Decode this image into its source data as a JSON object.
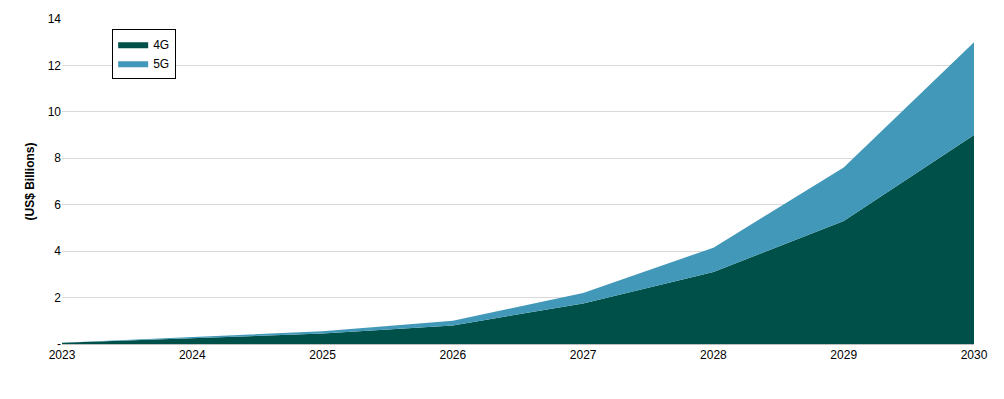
{
  "chart_data": {
    "type": "area",
    "stacked": true,
    "y_label": "(US$ Billions)",
    "x": [
      2023,
      2024,
      2025,
      2026,
      2027,
      2028,
      2029,
      2030
    ],
    "series": [
      {
        "name": "4G",
        "color": "#00504a",
        "values": [
          0.05,
          0.25,
          0.45,
          0.8,
          1.75,
          3.1,
          5.3,
          9.0
        ]
      },
      {
        "name": "5G",
        "color": "#4298b8",
        "values": [
          0,
          0.05,
          0.1,
          0.2,
          0.45,
          1.05,
          2.3,
          4.0
        ]
      }
    ],
    "xlim": [
      2023,
      2030
    ],
    "xticks": [
      2023,
      2024,
      2025,
      2026,
      2027,
      2028,
      2029,
      2030
    ],
    "ylim": [
      0,
      14
    ],
    "yticks": [
      {
        "value": 0,
        "label": "-"
      },
      2,
      4,
      6,
      8,
      10,
      12,
      14
    ],
    "grid": true,
    "legend": "top left"
  }
}
